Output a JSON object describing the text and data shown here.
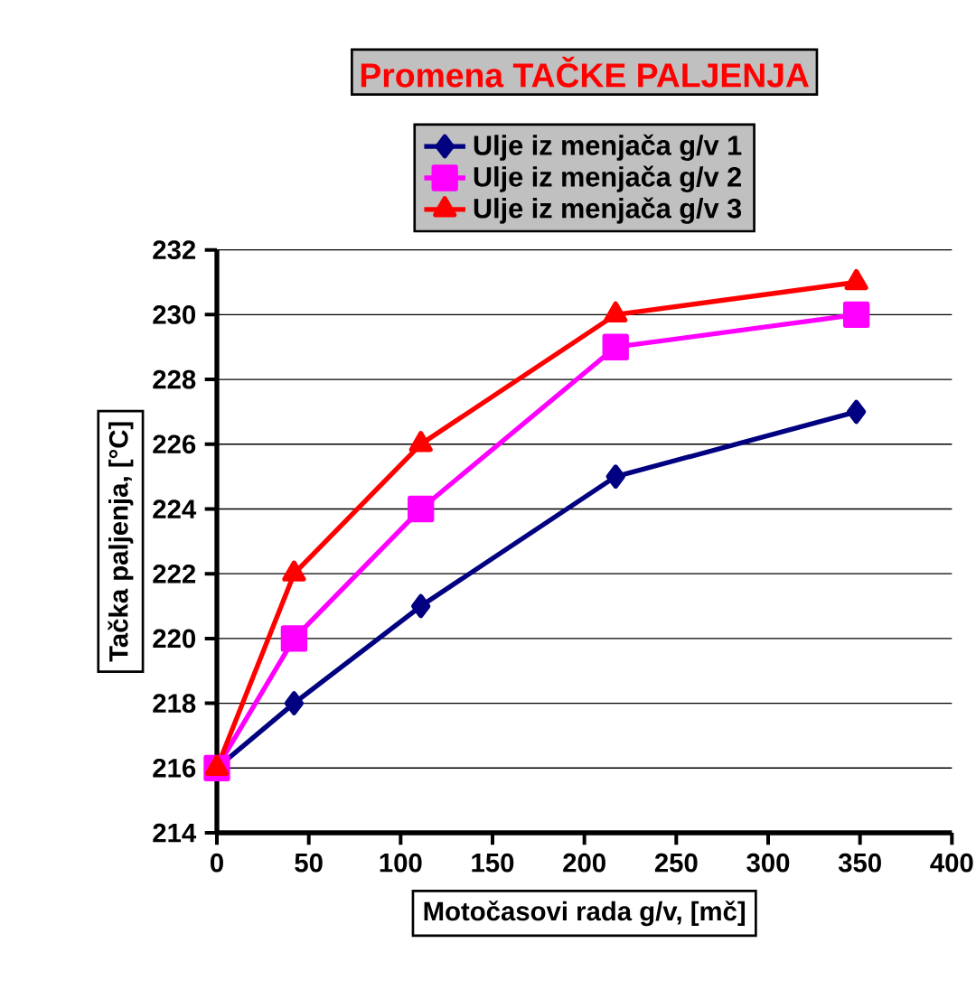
{
  "chart_data": {
    "type": "line",
    "title": "Promena TAČKE PALJENJA",
    "xlabel": "Motočasovi rada g/v, [mč]",
    "ylabel": "Tačka paljenja, [°C]",
    "x": [
      0,
      42,
      111,
      217,
      348
    ],
    "series": [
      {
        "name": "Ulje iz menjača g/v 1",
        "color": "#000080",
        "marker": "diamond",
        "values": [
          216,
          218,
          221,
          225,
          227
        ]
      },
      {
        "name": "Ulje iz menjača g/v 2",
        "color": "#ff00ff",
        "marker": "square",
        "values": [
          216,
          220,
          224,
          229,
          230
        ]
      },
      {
        "name": "Ulje iz menjača g/v 3",
        "color": "#ff0000",
        "marker": "triangle",
        "values": [
          216,
          222,
          226,
          230,
          231
        ]
      }
    ],
    "xlim": [
      0,
      400
    ],
    "xticks": [
      0,
      50,
      100,
      150,
      200,
      250,
      300,
      350,
      400
    ],
    "ylim": [
      214,
      232
    ],
    "yticks": [
      214,
      216,
      218,
      220,
      222,
      224,
      226,
      228,
      230,
      232
    ],
    "grid": "y",
    "legend": "top",
    "line_style": "solid"
  }
}
